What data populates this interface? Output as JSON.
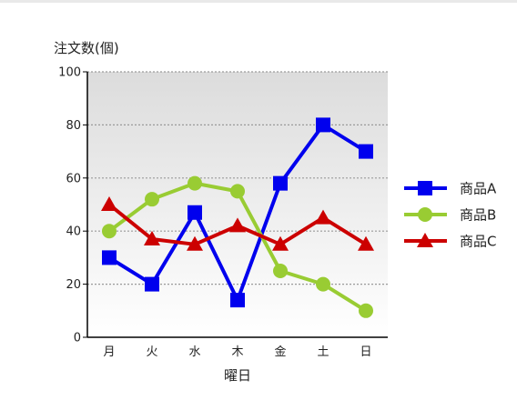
{
  "chart_data": {
    "type": "line",
    "title": "",
    "ylabel": "注文数(個)",
    "xlabel": "曜日",
    "categories": [
      "月",
      "火",
      "水",
      "木",
      "金",
      "土",
      "日"
    ],
    "ylim": [
      0,
      100
    ],
    "yticks": [
      0,
      20,
      40,
      60,
      80,
      100
    ],
    "grid": true,
    "legend_position": "right",
    "series": [
      {
        "name": "商品A",
        "values": [
          30,
          20,
          47,
          14,
          58,
          80,
          70
        ],
        "color": "#0000ee",
        "marker": "square"
      },
      {
        "name": "商品B",
        "values": [
          40,
          52,
          58,
          55,
          25,
          20,
          10
        ],
        "color": "#99cc33",
        "marker": "circle"
      },
      {
        "name": "商品C",
        "values": [
          50,
          37,
          35,
          42,
          35,
          45,
          35
        ],
        "color": "#cc0000",
        "marker": "triangle"
      }
    ]
  }
}
